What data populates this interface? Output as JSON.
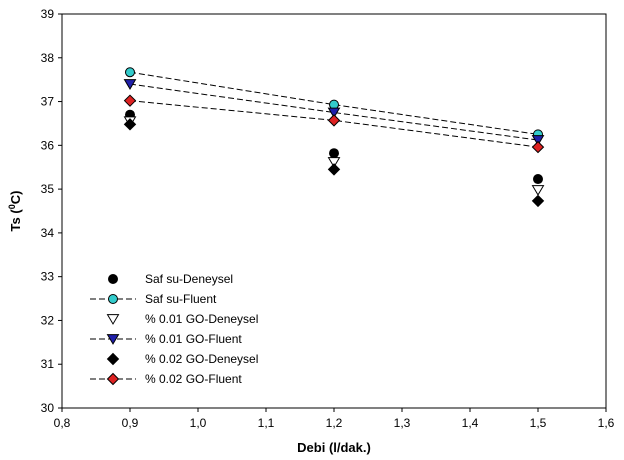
{
  "chart_data": {
    "type": "scatter",
    "title": "",
    "xlabel": "Debi (l/dak.)",
    "ylabel_main": "Ts (",
    "ylabel_sup": "0",
    "ylabel_end": "C)",
    "xlim": [
      0.8,
      1.6
    ],
    "ylim": [
      30,
      39
    ],
    "xticks": [
      0.8,
      0.9,
      1.0,
      1.1,
      1.2,
      1.3,
      1.4,
      1.5,
      1.6
    ],
    "yticks": [
      30,
      31,
      32,
      33,
      34,
      35,
      36,
      37,
      38,
      39
    ],
    "tick_decimal_separator": ",",
    "grid": false,
    "legend_position": "bottom-left",
    "x": [
      0.9,
      1.2,
      1.5
    ],
    "series": [
      {
        "name": "Saf su-Deneysel",
        "values": [
          36.7,
          35.82,
          35.23
        ],
        "marker": "circle",
        "fill": "#000000",
        "stroke": "#000000",
        "line": false
      },
      {
        "name": "Saf su-Fluent",
        "values": [
          37.67,
          36.93,
          36.25
        ],
        "marker": "circle",
        "fill": "#33CCCC",
        "stroke": "#000000",
        "line": true
      },
      {
        "name": "% 0.01 GO-Deneysel",
        "values": [
          36.55,
          35.62,
          34.98
        ],
        "marker": "triangle-down",
        "fill": "#FFFFFF",
        "stroke": "#000000",
        "line": false
      },
      {
        "name": "% 0.01 GO-Fluent",
        "values": [
          37.4,
          36.75,
          36.12
        ],
        "marker": "triangle-down",
        "fill": "#1F1FAA",
        "stroke": "#000000",
        "line": true
      },
      {
        "name": "% 0.02 GO-Deneysel",
        "values": [
          36.48,
          35.45,
          34.73
        ],
        "marker": "diamond",
        "fill": "#000000",
        "stroke": "#000000",
        "line": false
      },
      {
        "name": "% 0.02 GO-Fluent",
        "values": [
          37.02,
          36.57,
          35.96
        ],
        "marker": "diamond",
        "fill": "#DD2222",
        "stroke": "#000000",
        "line": true
      }
    ]
  }
}
